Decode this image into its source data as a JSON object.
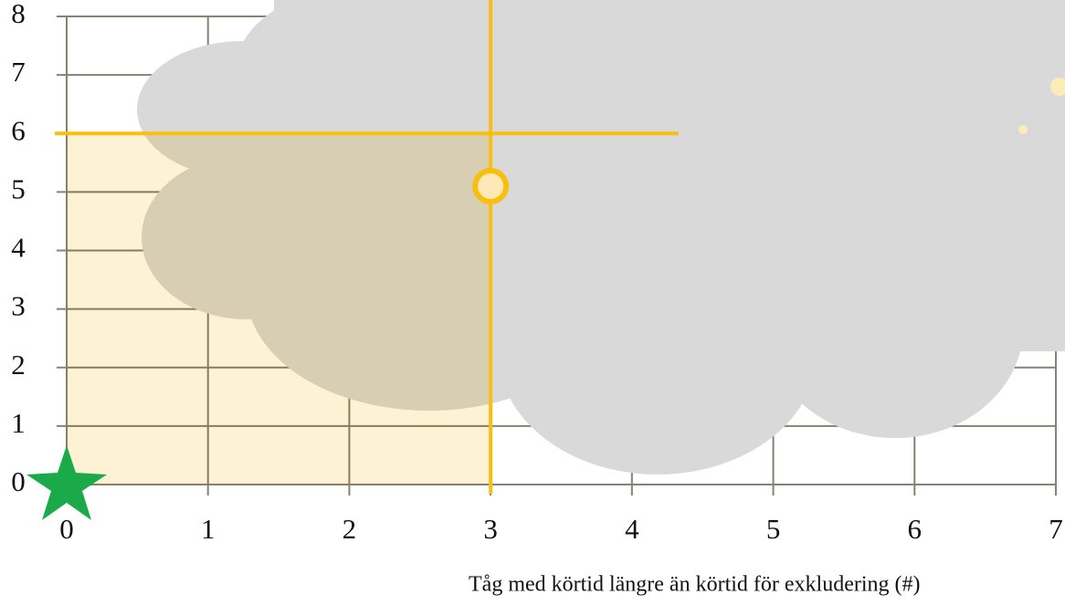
{
  "chart_data": {
    "type": "scatter",
    "x_label": "Tåg med körtid längre än körtid för exkludering (#)",
    "x": [
      3
    ],
    "y": [
      5.1
    ],
    "color": "#f9bf0f",
    "highlight": {
      "x": 3,
      "y": 6
    },
    "xlim": [
      0,
      7
    ],
    "ylim": [
      0,
      8
    ],
    "xticks": [
      0,
      1,
      2,
      3,
      4,
      5,
      6,
      7
    ],
    "yticks": [
      0,
      1,
      2,
      3,
      4,
      5,
      6,
      7,
      8
    ],
    "grid": true
  }
}
